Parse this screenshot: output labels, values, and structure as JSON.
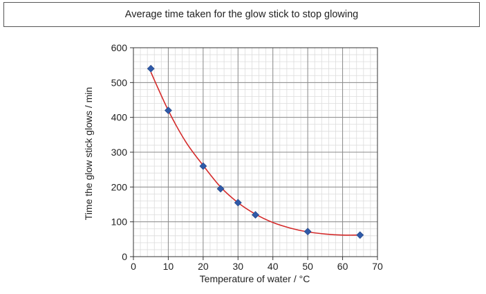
{
  "chart_data": {
    "type": "scatter",
    "title": "Average time taken for the glow stick to stop glowing",
    "xlabel": "Temperature of water / °C",
    "ylabel": "Time the glow stick glows / min",
    "xlim": [
      0,
      70
    ],
    "ylim": [
      0,
      600
    ],
    "xticks": [
      0,
      10,
      20,
      30,
      40,
      50,
      60,
      70
    ],
    "yticks": [
      0,
      100,
      200,
      300,
      400,
      500,
      600
    ],
    "grid": true,
    "minor_grid_step": {
      "x": 2,
      "y": 20
    },
    "series": [
      {
        "marker": "diamond",
        "color": "#2f5aa8",
        "x": [
          5,
          10,
          20,
          25,
          30,
          35,
          50,
          65
        ],
        "y": [
          540,
          420,
          260,
          195,
          155,
          120,
          72,
          62
        ]
      }
    ],
    "trendline": {
      "color": "#d42a2a",
      "x": [
        5,
        10,
        15,
        20,
        25,
        30,
        35,
        40,
        45,
        50,
        55,
        60,
        65
      ],
      "y": [
        530,
        420,
        330,
        262,
        200,
        155,
        122,
        98,
        82,
        71,
        65,
        62,
        62
      ]
    }
  }
}
